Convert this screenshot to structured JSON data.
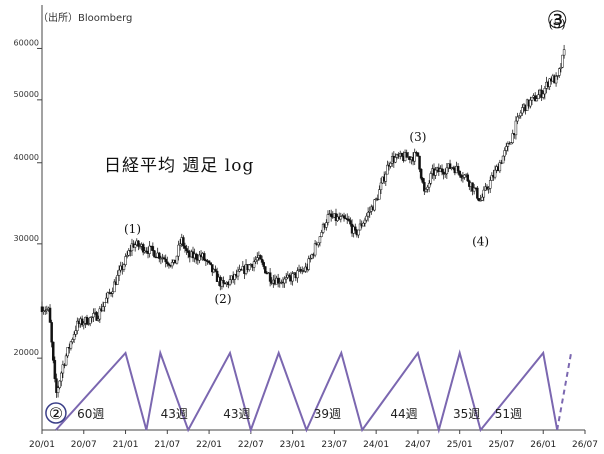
{
  "source": "（出所）Bloomberg",
  "chart_data": {
    "type": "candlestick",
    "title": "日経平均 週足 log",
    "y_scale": "log",
    "ylim": [
      15500,
      70000
    ],
    "yticks": [
      20000,
      30000,
      40000,
      50000,
      60000
    ],
    "ytick_labels": [
      "20000",
      "30000",
      "40000",
      "50000",
      "60000"
    ],
    "x_ticks": [
      "20/01",
      "20/07",
      "21/01",
      "21/07",
      "22/01",
      "22/07",
      "23/01",
      "23/07",
      "24/01",
      "24/07",
      "25/01",
      "25/07",
      "26/01",
      "26/07"
    ],
    "x_range": [
      "2020-01",
      "2026-07"
    ],
    "price_anchors": [
      [
        "2020-01",
        24000
      ],
      [
        "2020-02",
        23600
      ],
      [
        "2020-03",
        17500
      ],
      [
        "2020-04",
        19500
      ],
      [
        "2020-06",
        22500
      ],
      [
        "2020-09",
        23300
      ],
      [
        "2020-11",
        25500
      ],
      [
        "2021-01",
        28300
      ],
      [
        "2021-02",
        30000
      ],
      [
        "2021-04",
        29500
      ],
      [
        "2021-06",
        28800
      ],
      [
        "2021-08",
        27800
      ],
      [
        "2021-09",
        30500
      ],
      [
        "2021-10",
        28700
      ],
      [
        "2021-12",
        28700
      ],
      [
        "2022-03",
        25800
      ],
      [
        "2022-05",
        26800
      ],
      [
        "2022-08",
        28500
      ],
      [
        "2022-10",
        26500
      ],
      [
        "2022-12",
        26300
      ],
      [
        "2023-03",
        27500
      ],
      [
        "2023-06",
        33000
      ],
      [
        "2023-09",
        32500
      ],
      [
        "2023-10",
        31000
      ],
      [
        "2024-01",
        35000
      ],
      [
        "2024-03",
        40500
      ],
      [
        "2024-07",
        41000
      ],
      [
        "2024-08",
        35500
      ],
      [
        "2024-09",
        38500
      ],
      [
        "2024-12",
        39500
      ],
      [
        "2025-02",
        38000
      ],
      [
        "2025-04",
        35000
      ],
      [
        "2025-06",
        38500
      ],
      [
        "2025-08",
        42500
      ],
      [
        "2025-10",
        48500
      ],
      [
        "2026-01",
        51500
      ],
      [
        "2026-02",
        54000
      ],
      [
        "2026-03",
        53500
      ],
      [
        "2026-04",
        59000
      ]
    ],
    "wave_labels": [
      {
        "text": "(1)",
        "x": "2021-02",
        "price": 31200
      },
      {
        "text": "(2)",
        "x": "2022-03",
        "price": 24300
      },
      {
        "text": "(3)",
        "x": "2024-07",
        "price": 43200
      },
      {
        "text": "(4)",
        "x": "2025-04",
        "price": 29800
      },
      {
        "text": "(5)",
        "x": "2026-03",
        "price": 64500
      }
    ],
    "circled_labels": [
      {
        "text": "②",
        "x": "2020-03"
      },
      {
        "text": "③",
        "x": "2026-03"
      }
    ],
    "cycle_marks": [
      "2020-03",
      "2021-05",
      "2021-09",
      "2022-07",
      "2022-11",
      "2023-07",
      "2023-11",
      "2024-07",
      "2024-11",
      "2025-06",
      "2025-10",
      "2026-01"
    ],
    "cycle_intervals": [
      "60週",
      "43週",
      "43週",
      "39週",
      "44週",
      "35週",
      "51週"
    ]
  }
}
